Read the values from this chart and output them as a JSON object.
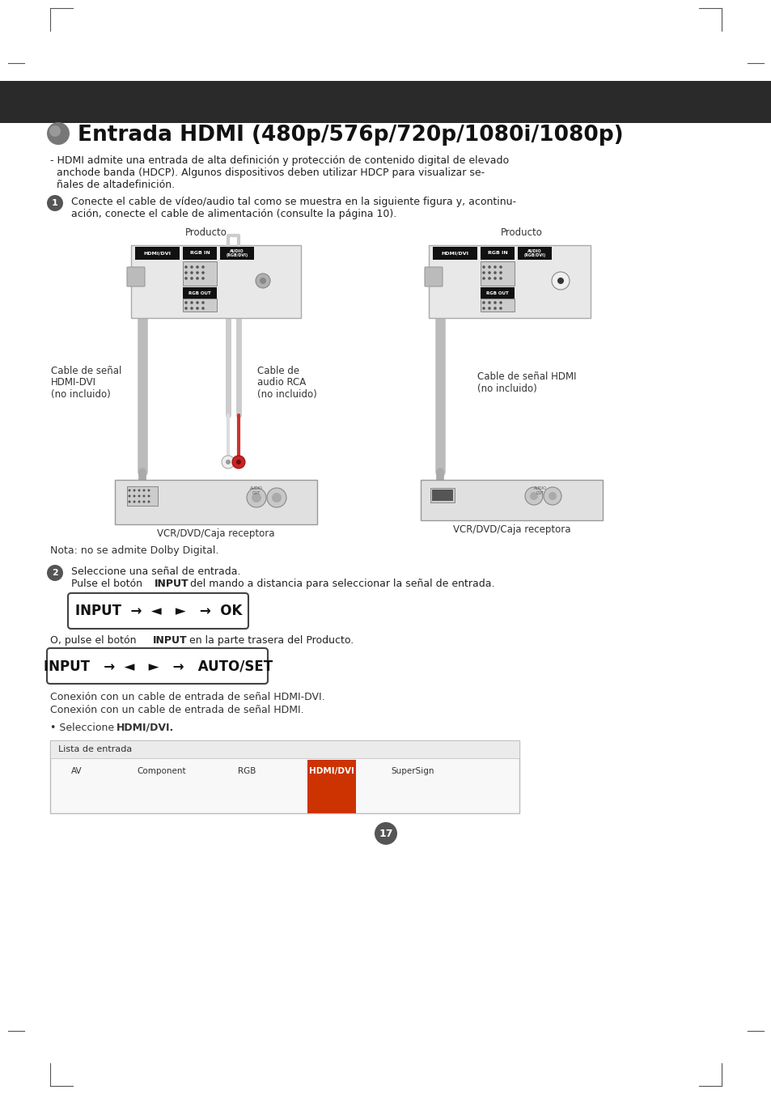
{
  "bg_color": "#ffffff",
  "dark_header_color": "#2a2a2a",
  "page_number": "17",
  "title": "Entrada HDMI (480p/576p/720p/1080i/1080p)",
  "intro_lines": [
    "- HDMI admite una entrada de alta definición y protección de contenido digital de elevado",
    "  anchode banda (HDCP). Algunos dispositivos deben utilizar HDCP para visualizar se-",
    "  ñales de altadefinición."
  ],
  "step1_lines": [
    "Conecte el cable de vídeo/audio tal como se muestra en la siguiente figura y, acontinu-",
    "ación, conecte el cable de alimentación (consulte la página 10)."
  ],
  "label_producto": "Producto",
  "label_cable_dvi": "Cable de señal\nHDMI-DVI\n(no incluido)",
  "label_cable_rca": "Cable de\naudio RCA\n(no incluido)",
  "label_cable_hdmi": "Cable de señal HDMI\n(no incluido)",
  "label_vcr1": "VCR/DVD/Caja receptora",
  "label_vcr2": "VCR/DVD/Caja receptora",
  "nota": "Nota: no se admite Dolby Digital.",
  "step2_line1": "Seleccione una señal de entrada.",
  "input_ok_text": "INPUT  →  ◄   ►   →  OK",
  "input_auto_text": "INPUT   →  ◄   ►   →   AUTO/SET",
  "conexion1": "Conexión con un cable de entrada de señal HDMI-DVI.",
  "conexion2": "Conexión con un cable de entrada de señal HDMI.",
  "seleccione_prefix": "• Seleccione ",
  "seleccione_bold": "HDMI/DVI.",
  "lista_label": "Lista de entrada",
  "lista_items": [
    "AV",
    "Component",
    "RGB",
    "HDMI/DVI",
    "SuperSign"
  ],
  "lista_item_x": [
    95,
    200,
    305,
    410,
    510
  ],
  "lista_highlight": 3
}
